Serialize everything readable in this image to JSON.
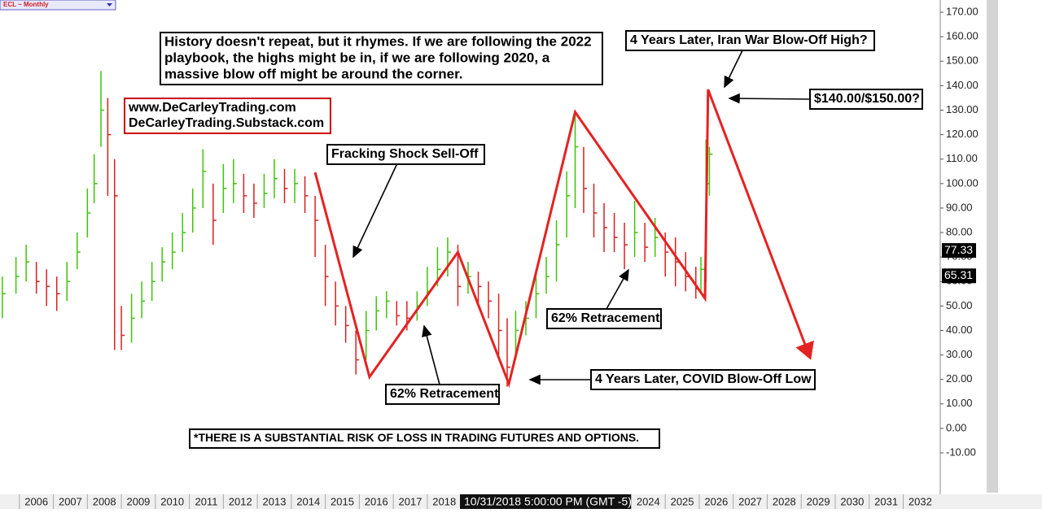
{
  "chart_data": {
    "type": "ohlc",
    "symbol": "ECL ~ Monthly",
    "x": [
      2005.5,
      2005.9,
      2006.2,
      2006.5,
      2006.8,
      2007.1,
      2007.4,
      2007.7,
      2008.0,
      2008.2,
      2008.4,
      2008.6,
      2008.8,
      2009.0,
      2009.3,
      2009.6,
      2009.9,
      2010.2,
      2010.5,
      2010.8,
      2011.1,
      2011.4,
      2011.7,
      2012.0,
      2012.3,
      2012.6,
      2012.9,
      2013.2,
      2013.5,
      2013.8,
      2014.1,
      2014.4,
      2014.7,
      2015.0,
      2015.3,
      2015.6,
      2015.9,
      2016.2,
      2016.5,
      2016.8,
      2017.1,
      2017.4,
      2017.7,
      2018.0,
      2018.3,
      2018.6,
      2018.9,
      2019.2,
      2019.5,
      2019.8,
      2020.1,
      2020.35,
      2020.6,
      2020.9,
      2021.2,
      2021.5,
      2021.8,
      2022.1,
      2022.35,
      2022.6,
      2022.9,
      2023.2,
      2023.5,
      2023.8,
      2024.1,
      2024.4,
      2024.7,
      2025.0,
      2025.3,
      2025.6,
      2025.9,
      2026.05,
      2026.2,
      2026.3
    ],
    "values": [
      55,
      62,
      68,
      60,
      58,
      55,
      60,
      72,
      88,
      100,
      130,
      120,
      95,
      38,
      45,
      52,
      60,
      68,
      72,
      80,
      90,
      105,
      85,
      98,
      100,
      95,
      92,
      96,
      102,
      98,
      100,
      95,
      85,
      62,
      50,
      42,
      28,
      40,
      48,
      52,
      46,
      45,
      50,
      56,
      65,
      72,
      58,
      62,
      58,
      52,
      40,
      25,
      40,
      45,
      55,
      62,
      75,
      95,
      115,
      98,
      88,
      82,
      78,
      75,
      80,
      74,
      78,
      72,
      68,
      62,
      57,
      65,
      100,
      112
    ],
    "high": [
      62,
      70,
      75,
      68,
      65,
      62,
      68,
      80,
      98,
      112,
      146,
      135,
      110,
      50,
      55,
      60,
      68,
      74,
      80,
      88,
      98,
      114,
      100,
      108,
      110,
      104,
      100,
      104,
      110,
      106,
      106,
      103,
      95,
      75,
      60,
      50,
      40,
      48,
      54,
      56,
      52,
      52,
      56,
      66,
      74,
      78,
      75,
      68,
      64,
      60,
      55,
      45,
      48,
      52,
      62,
      70,
      85,
      105,
      130,
      115,
      100,
      92,
      88,
      84,
      93,
      84,
      86,
      80,
      78,
      72,
      66,
      70,
      118,
      115
    ],
    "low": [
      45,
      55,
      60,
      55,
      50,
      48,
      52,
      65,
      78,
      92,
      115,
      95,
      32,
      32,
      35,
      45,
      52,
      60,
      65,
      72,
      80,
      90,
      75,
      88,
      92,
      88,
      86,
      90,
      94,
      92,
      92,
      88,
      70,
      50,
      42,
      35,
      22,
      28,
      40,
      45,
      42,
      40,
      44,
      50,
      58,
      62,
      50,
      55,
      50,
      45,
      30,
      17,
      28,
      38,
      45,
      55,
      60,
      78,
      90,
      88,
      78,
      72,
      72,
      65,
      70,
      68,
      70,
      62,
      58,
      56,
      53,
      55,
      60,
      95
    ],
    "up_color": "#3fc40a",
    "down_color": "#d92020",
    "trendline": {
      "x": [
        2014.7,
        2016.3,
        2018.9,
        2020.4,
        2022.35,
        2026.17,
        2026.26,
        2029.26
      ],
      "values": [
        104.6,
        21,
        72,
        18.2,
        129.2,
        53.1,
        138.4,
        28.9
      ],
      "color": "#e52222"
    },
    "ylim": [
      -27.6,
      175
    ],
    "xlim": [
      2005.43,
      2033.09
    ],
    "yticks": [
      {
        "value": 170,
        "label": "170.00"
      },
      {
        "value": 160,
        "label": "160.00"
      },
      {
        "value": 150,
        "label": "150.00"
      },
      {
        "value": 140,
        "label": "140.00"
      },
      {
        "value": 130,
        "label": "130.00"
      },
      {
        "value": 120,
        "label": "120.00"
      },
      {
        "value": 110,
        "label": "110.00"
      },
      {
        "value": 100,
        "label": "100.00"
      },
      {
        "value": 90,
        "label": "90.00"
      },
      {
        "value": 80,
        "label": "80.00"
      },
      {
        "value": 70,
        "label": "70.00"
      },
      {
        "value": 60,
        "label": "60.00"
      },
      {
        "value": 50,
        "label": "50.00"
      },
      {
        "value": 40,
        "label": "40.00"
      },
      {
        "value": 30,
        "label": "30.00"
      },
      {
        "value": 20,
        "label": "20.00"
      },
      {
        "value": 10,
        "label": "10.00"
      },
      {
        "value": 0,
        "label": "0.00"
      },
      {
        "value": -10,
        "label": "-10.00"
      }
    ],
    "xticks": [
      2006,
      2007,
      2008,
      2009,
      2010,
      2011,
      2012,
      2013,
      2014,
      2015,
      2016,
      2017,
      2018,
      2019,
      2020,
      2021,
      2022,
      2023,
      2024,
      2025,
      2026,
      2027,
      2028,
      2029,
      2030,
      2031,
      2032
    ],
    "price_tags": [
      77.33,
      65.31
    ],
    "crosshair_label": "10/31/2018 5:00:00 PM (GMT -5)",
    "annotations": [
      {
        "lines": [
          "History doesn't repeat, but it rhymes. If we are following the 2022",
          " playbook, the highs might be in, if we are following 2020, a",
          " massive blow off might be around the corner."
        ]
      },
      {
        "lines": [
          "www.DeCarleyTrading.com",
          "DeCarleyTrading.Substack.com"
        ]
      },
      {
        "lines": [
          "Fracking Shock Sell-Off"
        ]
      },
      {
        "lines": [
          "62% Retracement"
        ]
      },
      {
        "lines": [
          "4 Years Later, COVID Blow-Off Low"
        ]
      },
      {
        "lines": [
          "62% Retracement"
        ]
      },
      {
        "lines": [
          "4 Years Later, Iran War Blow-Off High?"
        ]
      },
      {
        "lines": [
          "$140.00/$150.00?"
        ]
      },
      {
        "lines": [
          "*THERE IS A SUBSTANTIAL RISK OF LOSS IN TRADING FUTURES AND OPTIONS."
        ]
      }
    ]
  }
}
